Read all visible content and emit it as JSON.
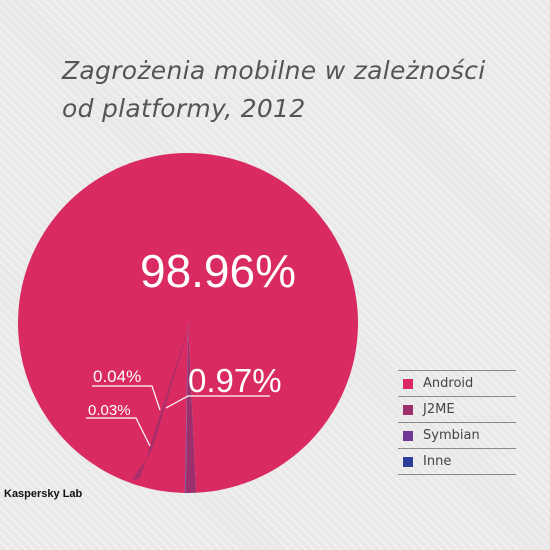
{
  "title_line1": "Zagrożenia mobilne w zależności",
  "title_line2": "od platformy, 2012",
  "source": "Kaspersky Lab",
  "chart_data": {
    "type": "pie",
    "title": "Zagrożenia mobilne w zależności od platformy, 2012",
    "categories": [
      "Android",
      "J2ME",
      "Symbian",
      "Inne"
    ],
    "values": [
      98.96,
      0.97,
      0.04,
      0.03
    ],
    "labels": [
      "98.96%",
      "0.97%",
      "0.04%",
      "0.03%"
    ],
    "colors": [
      "#da2a62",
      "#9c2f6c",
      "#6f3a93",
      "#2b3e9a"
    ],
    "legend_position": "right"
  }
}
